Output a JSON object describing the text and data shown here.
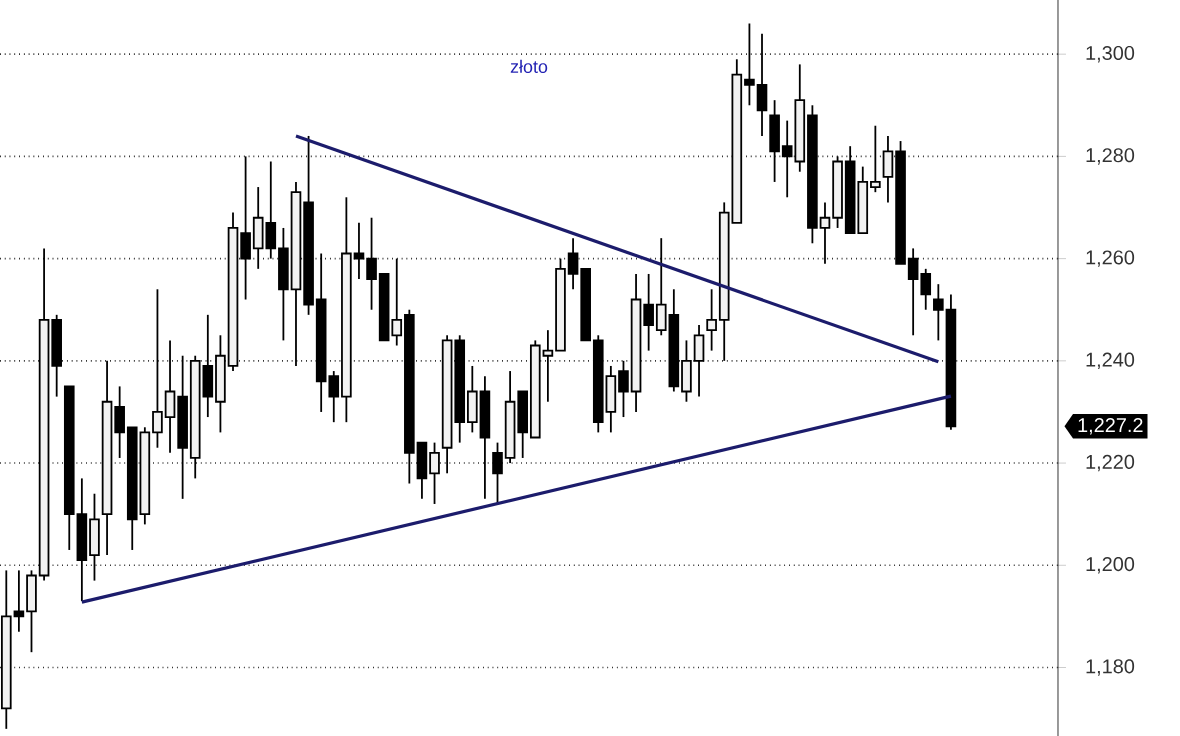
{
  "chart_data": {
    "type": "candlestick",
    "title": "złoto",
    "categories": [
      null,
      null,
      null,
      null,
      null,
      null,
      null,
      null,
      null,
      null,
      null,
      null,
      null,
      null,
      null,
      null,
      null,
      null,
      null,
      null,
      null,
      null,
      null,
      null,
      null,
      null,
      null,
      null,
      null,
      null,
      null,
      null,
      null,
      null,
      null,
      null,
      null,
      null,
      null,
      null,
      null,
      null,
      null,
      null,
      null,
      null,
      null,
      null,
      null,
      null,
      null,
      null,
      null,
      null,
      null,
      null,
      null,
      null,
      null,
      null,
      null,
      null,
      null,
      null,
      null,
      null,
      null,
      null,
      null,
      null,
      null,
      null,
      null,
      null,
      null,
      null,
      null,
      null,
      null,
      null,
      null,
      null,
      null,
      null
    ],
    "ohlc": [
      [
        1172,
        1199,
        1168,
        1190
      ],
      [
        1191,
        1199,
        1187,
        1190
      ],
      [
        1191,
        1199,
        1183,
        1198
      ],
      [
        1198,
        1262,
        1197,
        1248
      ],
      [
        1248,
        1249,
        1233,
        1239
      ],
      [
        1235,
        1235,
        1203,
        1210
      ],
      [
        1210,
        1217,
        1193,
        1201
      ],
      [
        1202,
        1214,
        1197,
        1209
      ],
      [
        1210,
        1240,
        1202,
        1232
      ],
      [
        1231,
        1235,
        1221,
        1226
      ],
      [
        1227,
        1227,
        1203,
        1209
      ],
      [
        1210,
        1227,
        1208,
        1226
      ],
      [
        1226,
        1254,
        1223,
        1230
      ],
      [
        1229,
        1244,
        1222,
        1234
      ],
      [
        1233,
        1241,
        1213,
        1223
      ],
      [
        1221,
        1241,
        1217,
        1240
      ],
      [
        1239,
        1249,
        1229,
        1233
      ],
      [
        1232,
        1245,
        1226,
        1241
      ],
      [
        1239,
        1269,
        1238,
        1266
      ],
      [
        1265,
        1280,
        1252,
        1260
      ],
      [
        1262,
        1274,
        1258,
        1268
      ],
      [
        1267,
        1279,
        1260,
        1262
      ],
      [
        1262,
        1266,
        1244,
        1254
      ],
      [
        1254,
        1275,
        1239,
        1273
      ],
      [
        1271,
        1284,
        1249,
        1251
      ],
      [
        1252,
        1261,
        1230,
        1236
      ],
      [
        1237,
        1238,
        1228,
        1233
      ],
      [
        1233,
        1272,
        1228,
        1261
      ],
      [
        1261,
        1267,
        1256,
        1260
      ],
      [
        1260,
        1268,
        1250,
        1256
      ],
      [
        1257,
        1257,
        1244,
        1244
      ],
      [
        1245,
        1260,
        1243,
        1248
      ],
      [
        1249,
        1250,
        1216,
        1222
      ],
      [
        1224,
        1224,
        1213,
        1217
      ],
      [
        1218,
        1224,
        1212,
        1222
      ],
      [
        1223,
        1245,
        1218,
        1244
      ],
      [
        1244,
        1245,
        1224,
        1228
      ],
      [
        1228,
        1239,
        1226,
        1234
      ],
      [
        1234,
        1237,
        1213,
        1225
      ],
      [
        1222,
        1224,
        1212,
        1218
      ],
      [
        1221,
        1238,
        1220,
        1232
      ],
      [
        1234,
        1234,
        1221,
        1226
      ],
      [
        1225,
        1244,
        1225,
        1243
      ],
      [
        1241,
        1246,
        1232,
        1242
      ],
      [
        1242,
        1260,
        1242,
        1258
      ],
      [
        1261,
        1264,
        1254,
        1257
      ],
      [
        1258,
        1258,
        1244,
        1244
      ],
      [
        1244,
        1245,
        1226,
        1228
      ],
      [
        1230,
        1239,
        1226,
        1237
      ],
      [
        1238,
        1240,
        1229,
        1234
      ],
      [
        1234,
        1257,
        1230,
        1252
      ],
      [
        1251,
        1257,
        1242,
        1247
      ],
      [
        1246,
        1264,
        1245,
        1251
      ],
      [
        1249,
        1254,
        1234,
        1235
      ],
      [
        1234,
        1244,
        1232,
        1240
      ],
      [
        1240,
        1247,
        1233,
        1245
      ],
      [
        1246,
        1254,
        1242,
        1248
      ],
      [
        1248,
        1271,
        1240,
        1269
      ],
      [
        1267,
        1299,
        1267,
        1296
      ],
      [
        1295,
        1306,
        1290,
        1294
      ],
      [
        1294,
        1304,
        1284,
        1289
      ],
      [
        1288,
        1291,
        1275,
        1281
      ],
      [
        1282,
        1287,
        1272,
        1280
      ],
      [
        1279,
        1298,
        1277,
        1291
      ],
      [
        1288,
        1290,
        1263,
        1266
      ],
      [
        1266,
        1271,
        1259,
        1268
      ],
      [
        1268,
        1280,
        1266,
        1279
      ],
      [
        1279,
        1282,
        1265,
        1265
      ],
      [
        1265,
        1278,
        1265,
        1275
      ],
      [
        1274,
        1286,
        1273,
        1275
      ],
      [
        1276,
        1284,
        1271,
        1281
      ],
      [
        1281,
        1283,
        1259,
        1259
      ],
      [
        1260,
        1262,
        1245,
        1256
      ],
      [
        1257,
        1258,
        1250,
        1253
      ],
      [
        1252,
        1255,
        1244,
        1250
      ],
      [
        1250,
        1253,
        1226.5,
        1227.2
      ],
      null,
      null,
      null,
      null,
      null,
      null,
      null,
      null
    ],
    "series": [
      {
        "type": "line",
        "values": [
          null,
          null,
          null,
          null,
          null,
          null,
          null,
          null,
          null,
          null,
          null,
          null,
          null,
          null,
          null,
          null,
          null,
          null,
          null,
          null,
          null,
          null,
          null,
          1284,
          null,
          null,
          null,
          null,
          null,
          null,
          null,
          null,
          null,
          null,
          null,
          null,
          null,
          null,
          null,
          null,
          null,
          null,
          null,
          null,
          null,
          null,
          null,
          null,
          null,
          null,
          null,
          null,
          null,
          null,
          null,
          null,
          null,
          null,
          null,
          null,
          null,
          null,
          null,
          null,
          null,
          null,
          null,
          null,
          null,
          null,
          null,
          null,
          null,
          null,
          1239.8,
          null,
          null,
          null,
          null,
          null,
          null,
          null,
          null,
          null
        ],
        "color": "#1c1c6c"
      },
      {
        "type": "line",
        "values": [
          null,
          null,
          null,
          null,
          null,
          null,
          1192.8,
          null,
          null,
          null,
          null,
          null,
          null,
          null,
          null,
          null,
          null,
          null,
          null,
          null,
          null,
          null,
          null,
          null,
          null,
          null,
          null,
          null,
          null,
          null,
          null,
          null,
          null,
          null,
          null,
          null,
          null,
          null,
          null,
          null,
          null,
          null,
          null,
          null,
          null,
          null,
          null,
          null,
          null,
          null,
          null,
          null,
          null,
          null,
          null,
          null,
          null,
          null,
          null,
          null,
          null,
          null,
          null,
          null,
          null,
          null,
          null,
          null,
          null,
          null,
          null,
          null,
          null,
          null,
          null,
          1233.1,
          null,
          null,
          null,
          null,
          null,
          null,
          null,
          null
        ],
        "color": "#1c1c6c"
      }
    ],
    "ylim": [
      1166.6,
      1310.6
    ],
    "yticks": [
      {
        "value": 1180,
        "label": "1,180"
      },
      {
        "value": 1200,
        "label": "1,200"
      },
      {
        "value": 1220,
        "label": "1,220"
      },
      {
        "value": 1240,
        "label": "1,240"
      },
      {
        "value": 1260,
        "label": "1,260"
      },
      {
        "value": 1280,
        "label": "1,280"
      },
      {
        "value": 1300,
        "label": "1,300"
      }
    ],
    "grid": "y",
    "tick_labels": "y",
    "annotations": [
      "1,227.2"
    ]
  }
}
